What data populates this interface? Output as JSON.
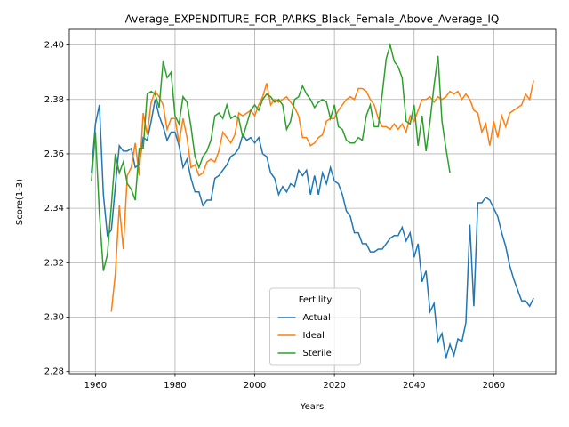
{
  "chart_data": {
    "type": "line",
    "title": "Average_EXPENDITURE_FOR_PARKS_Black_Female_Above_Average_IQ",
    "x_label": "Years",
    "y_label": "Score(1-3)",
    "legend_title": "Fertility",
    "legend_position": "lower center",
    "grid": true,
    "x": [
      1959,
      1960,
      1961,
      1962,
      1963,
      1964,
      1965,
      1966,
      1967,
      1968,
      1969,
      1970,
      1971,
      1972,
      1973,
      1974,
      1975,
      1976,
      1977,
      1978,
      1979,
      1980,
      1981,
      1982,
      1983,
      1984,
      1985,
      1986,
      1987,
      1988,
      1989,
      1990,
      1991,
      1992,
      1993,
      1994,
      1995,
      1996,
      1997,
      1998,
      1999,
      2000,
      2001,
      2002,
      2003,
      2004,
      2005,
      2006,
      2007,
      2008,
      2009,
      2010,
      2011,
      2012,
      2013,
      2014,
      2015,
      2016,
      2017,
      2018,
      2019,
      2020,
      2021,
      2022,
      2023,
      2024,
      2025,
      2026,
      2027,
      2028,
      2029,
      2030,
      2031,
      2032,
      2033,
      2034,
      2035,
      2036,
      2037,
      2038,
      2039,
      2040,
      2041,
      2042,
      2043,
      2044,
      2045,
      2046,
      2047,
      2048,
      2049,
      2050,
      2051,
      2052,
      2053,
      2054,
      2055,
      2056,
      2057,
      2058,
      2059,
      2060,
      2061,
      2062,
      2063,
      2064,
      2065,
      2066,
      2067,
      2068,
      2069,
      2070
    ],
    "series": [
      {
        "name": "Actual",
        "color": "#1f77b4",
        "values": [
          2.353,
          2.371,
          2.378,
          2.345,
          2.33,
          2.332,
          2.348,
          2.363,
          2.361,
          2.361,
          2.362,
          2.355,
          2.356,
          2.366,
          2.365,
          2.372,
          2.38,
          2.374,
          2.37,
          2.365,
          2.368,
          2.368,
          2.363,
          2.355,
          2.358,
          2.351,
          2.346,
          2.346,
          2.341,
          2.343,
          2.343,
          2.351,
          2.352,
          2.354,
          2.356,
          2.359,
          2.36,
          2.362,
          2.367,
          2.365,
          2.366,
          2.364,
          2.366,
          2.36,
          2.359,
          2.353,
          2.351,
          2.345,
          2.348,
          2.346,
          2.349,
          2.348,
          2.354,
          2.352,
          2.354,
          2.345,
          2.352,
          2.345,
          2.353,
          2.349,
          2.355,
          2.35,
          2.349,
          2.345,
          2.339,
          2.337,
          2.331,
          2.331,
          2.327,
          2.327,
          2.324,
          2.324,
          2.325,
          2.325,
          2.327,
          2.329,
          2.33,
          2.33,
          2.333,
          2.328,
          2.331,
          2.322,
          2.327,
          2.313,
          2.317,
          2.302,
          2.305,
          2.291,
          2.294,
          2.285,
          2.29,
          2.286,
          2.292,
          2.291,
          2.298,
          2.334,
          2.304,
          2.342,
          2.342,
          2.344,
          2.343,
          2.34,
          2.337,
          2.331,
          2.326,
          2.319,
          2.314,
          2.31,
          2.306,
          2.306,
          2.304,
          2.307
        ]
      },
      {
        "name": "Ideal",
        "color": "#ff7f0e",
        "values": [
          null,
          null,
          null,
          null,
          null,
          2.302,
          2.316,
          2.341,
          2.325,
          2.352,
          2.355,
          2.364,
          2.352,
          2.375,
          2.367,
          2.379,
          2.383,
          2.381,
          2.378,
          2.369,
          2.373,
          2.373,
          2.364,
          2.373,
          2.366,
          2.355,
          2.356,
          2.352,
          2.353,
          2.357,
          2.358,
          2.357,
          2.361,
          2.368,
          2.366,
          2.364,
          2.367,
          2.375,
          2.374,
          2.375,
          2.376,
          2.374,
          2.378,
          2.381,
          2.386,
          2.378,
          2.38,
          2.379,
          2.38,
          2.381,
          2.379,
          2.377,
          2.374,
          2.366,
          2.366,
          2.363,
          2.364,
          2.366,
          2.367,
          2.372,
          2.373,
          2.373,
          2.376,
          2.378,
          2.38,
          2.381,
          2.38,
          2.384,
          2.384,
          2.383,
          2.38,
          2.378,
          2.373,
          2.37,
          2.37,
          2.369,
          2.371,
          2.369,
          2.371,
          2.368,
          2.374,
          2.372,
          2.376,
          2.38,
          2.38,
          2.381,
          2.379,
          2.381,
          2.38,
          2.381,
          2.383,
          2.382,
          2.383,
          2.38,
          2.382,
          2.38,
          2.376,
          2.375,
          2.368,
          2.371,
          2.363,
          2.372,
          2.366,
          2.374,
          2.37,
          2.375,
          2.376,
          2.377,
          2.378,
          2.382,
          2.38,
          2.387
        ]
      },
      {
        "name": "Sterile",
        "color": "#2ca02c",
        "values": [
          2.35,
          2.368,
          2.338,
          2.317,
          2.323,
          2.341,
          2.36,
          2.353,
          2.357,
          2.349,
          2.347,
          2.343,
          2.362,
          2.362,
          2.382,
          2.383,
          2.382,
          2.377,
          2.394,
          2.388,
          2.39,
          2.374,
          2.371,
          2.381,
          2.379,
          2.37,
          2.359,
          2.355,
          2.359,
          2.361,
          2.365,
          2.374,
          2.375,
          2.373,
          2.378,
          2.373,
          2.374,
          2.373,
          2.366,
          2.371,
          2.376,
          2.378,
          2.376,
          2.38,
          2.382,
          2.381,
          2.379,
          2.38,
          2.378,
          2.369,
          2.372,
          2.38,
          2.381,
          2.385,
          2.382,
          2.38,
          2.377,
          2.379,
          2.38,
          2.379,
          2.373,
          2.378,
          2.37,
          2.369,
          2.365,
          2.364,
          2.364,
          2.366,
          2.365,
          2.374,
          2.378,
          2.37,
          2.37,
          2.382,
          2.395,
          2.4,
          2.394,
          2.392,
          2.388,
          2.372,
          2.371,
          2.378,
          2.363,
          2.374,
          2.361,
          2.372,
          2.385,
          2.396,
          2.372,
          2.362,
          2.353,
          null,
          null,
          null,
          null,
          null,
          null,
          null,
          null,
          null,
          null,
          null,
          null,
          null,
          null,
          null,
          null,
          null,
          null,
          null,
          null,
          null
        ]
      }
    ],
    "xlim": [
      1953.45,
      2075.55
    ],
    "xticks": [
      1960,
      1980,
      2000,
      2020,
      2040,
      2060
    ],
    "ylim": [
      2.27925,
      2.40575
    ],
    "yticks": [
      2.28,
      {
        "value": 2.3,
        "label": "2.30"
      },
      2.32,
      2.34,
      2.36,
      2.38,
      {
        "value": 2.4,
        "label": "2.40"
      }
    ]
  }
}
